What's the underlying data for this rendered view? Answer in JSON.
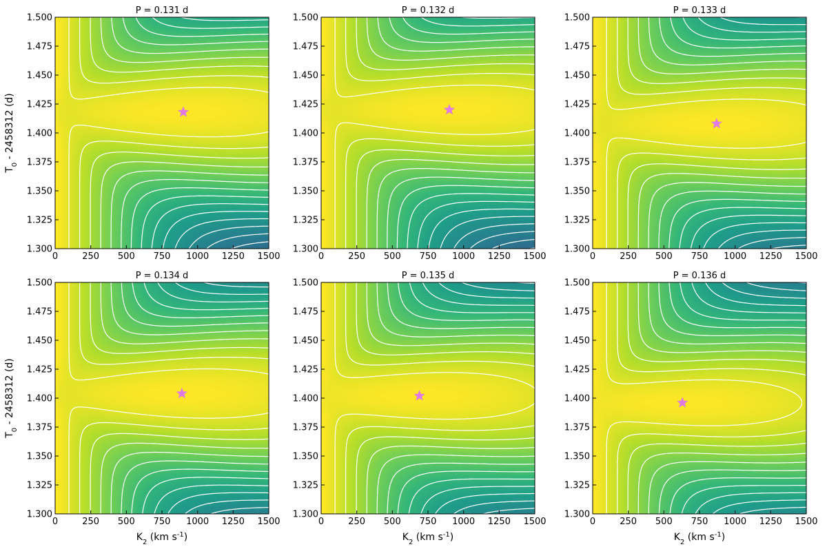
{
  "figure": {
    "ylabel": "T$_0$ - 2458312 (d)",
    "xlabel": "K$_2$ (km s$^{-1}$)"
  },
  "chart_data": [
    {
      "type": "heatmap",
      "title": "P = 0.131 d",
      "xlim": [
        0,
        1500
      ],
      "ylim": [
        1.3,
        1.5
      ],
      "xticks": [
        0,
        250,
        500,
        750,
        1000,
        1250,
        1500
      ],
      "yticks": [
        1.3,
        1.325,
        1.35,
        1.375,
        1.4,
        1.425,
        1.45,
        1.475,
        1.5
      ],
      "best_fit": {
        "x": 900,
        "y": 1.418
      },
      "contours": "white",
      "colormap": "viridis"
    },
    {
      "type": "heatmap",
      "title": "P = 0.132 d",
      "xlim": [
        0,
        1500
      ],
      "ylim": [
        1.3,
        1.5
      ],
      "xticks": [
        0,
        250,
        500,
        750,
        1000,
        1250,
        1500
      ],
      "yticks": [
        1.3,
        1.325,
        1.35,
        1.375,
        1.4,
        1.425,
        1.45,
        1.475,
        1.5
      ],
      "best_fit": {
        "x": 900,
        "y": 1.42
      },
      "contours": "white",
      "colormap": "viridis"
    },
    {
      "type": "heatmap",
      "title": "P = 0.133 d",
      "xlim": [
        0,
        1500
      ],
      "ylim": [
        1.3,
        1.5
      ],
      "xticks": [
        0,
        250,
        500,
        750,
        1000,
        1250,
        1500
      ],
      "yticks": [
        1.3,
        1.325,
        1.35,
        1.375,
        1.4,
        1.425,
        1.45,
        1.475,
        1.5
      ],
      "best_fit": {
        "x": 870,
        "y": 1.408
      },
      "contours": "white",
      "colormap": "viridis"
    },
    {
      "type": "heatmap",
      "title": "P = 0.134 d",
      "xlim": [
        0,
        1500
      ],
      "ylim": [
        1.3,
        1.5
      ],
      "xticks": [
        0,
        250,
        500,
        750,
        1000,
        1250,
        1500
      ],
      "yticks": [
        1.3,
        1.325,
        1.35,
        1.375,
        1.4,
        1.425,
        1.45,
        1.475,
        1.5
      ],
      "best_fit": {
        "x": 890,
        "y": 1.404
      },
      "contours": "white",
      "colormap": "viridis"
    },
    {
      "type": "heatmap",
      "title": "P = 0.135 d",
      "xlim": [
        0,
        1500
      ],
      "ylim": [
        1.3,
        1.5
      ],
      "xticks": [
        0,
        250,
        500,
        750,
        1000,
        1250,
        1500
      ],
      "yticks": [
        1.3,
        1.325,
        1.35,
        1.375,
        1.4,
        1.425,
        1.45,
        1.475,
        1.5
      ],
      "best_fit": {
        "x": 690,
        "y": 1.402
      },
      "contours": "white",
      "colormap": "viridis"
    },
    {
      "type": "heatmap",
      "title": "P = 0.136 d",
      "xlim": [
        0,
        1500
      ],
      "ylim": [
        1.3,
        1.5
      ],
      "xticks": [
        0,
        250,
        500,
        750,
        1000,
        1250,
        1500
      ],
      "yticks": [
        1.3,
        1.325,
        1.35,
        1.375,
        1.4,
        1.425,
        1.45,
        1.475,
        1.5
      ],
      "best_fit": {
        "x": 630,
        "y": 1.396
      },
      "contours": "white",
      "colormap": "viridis"
    }
  ]
}
